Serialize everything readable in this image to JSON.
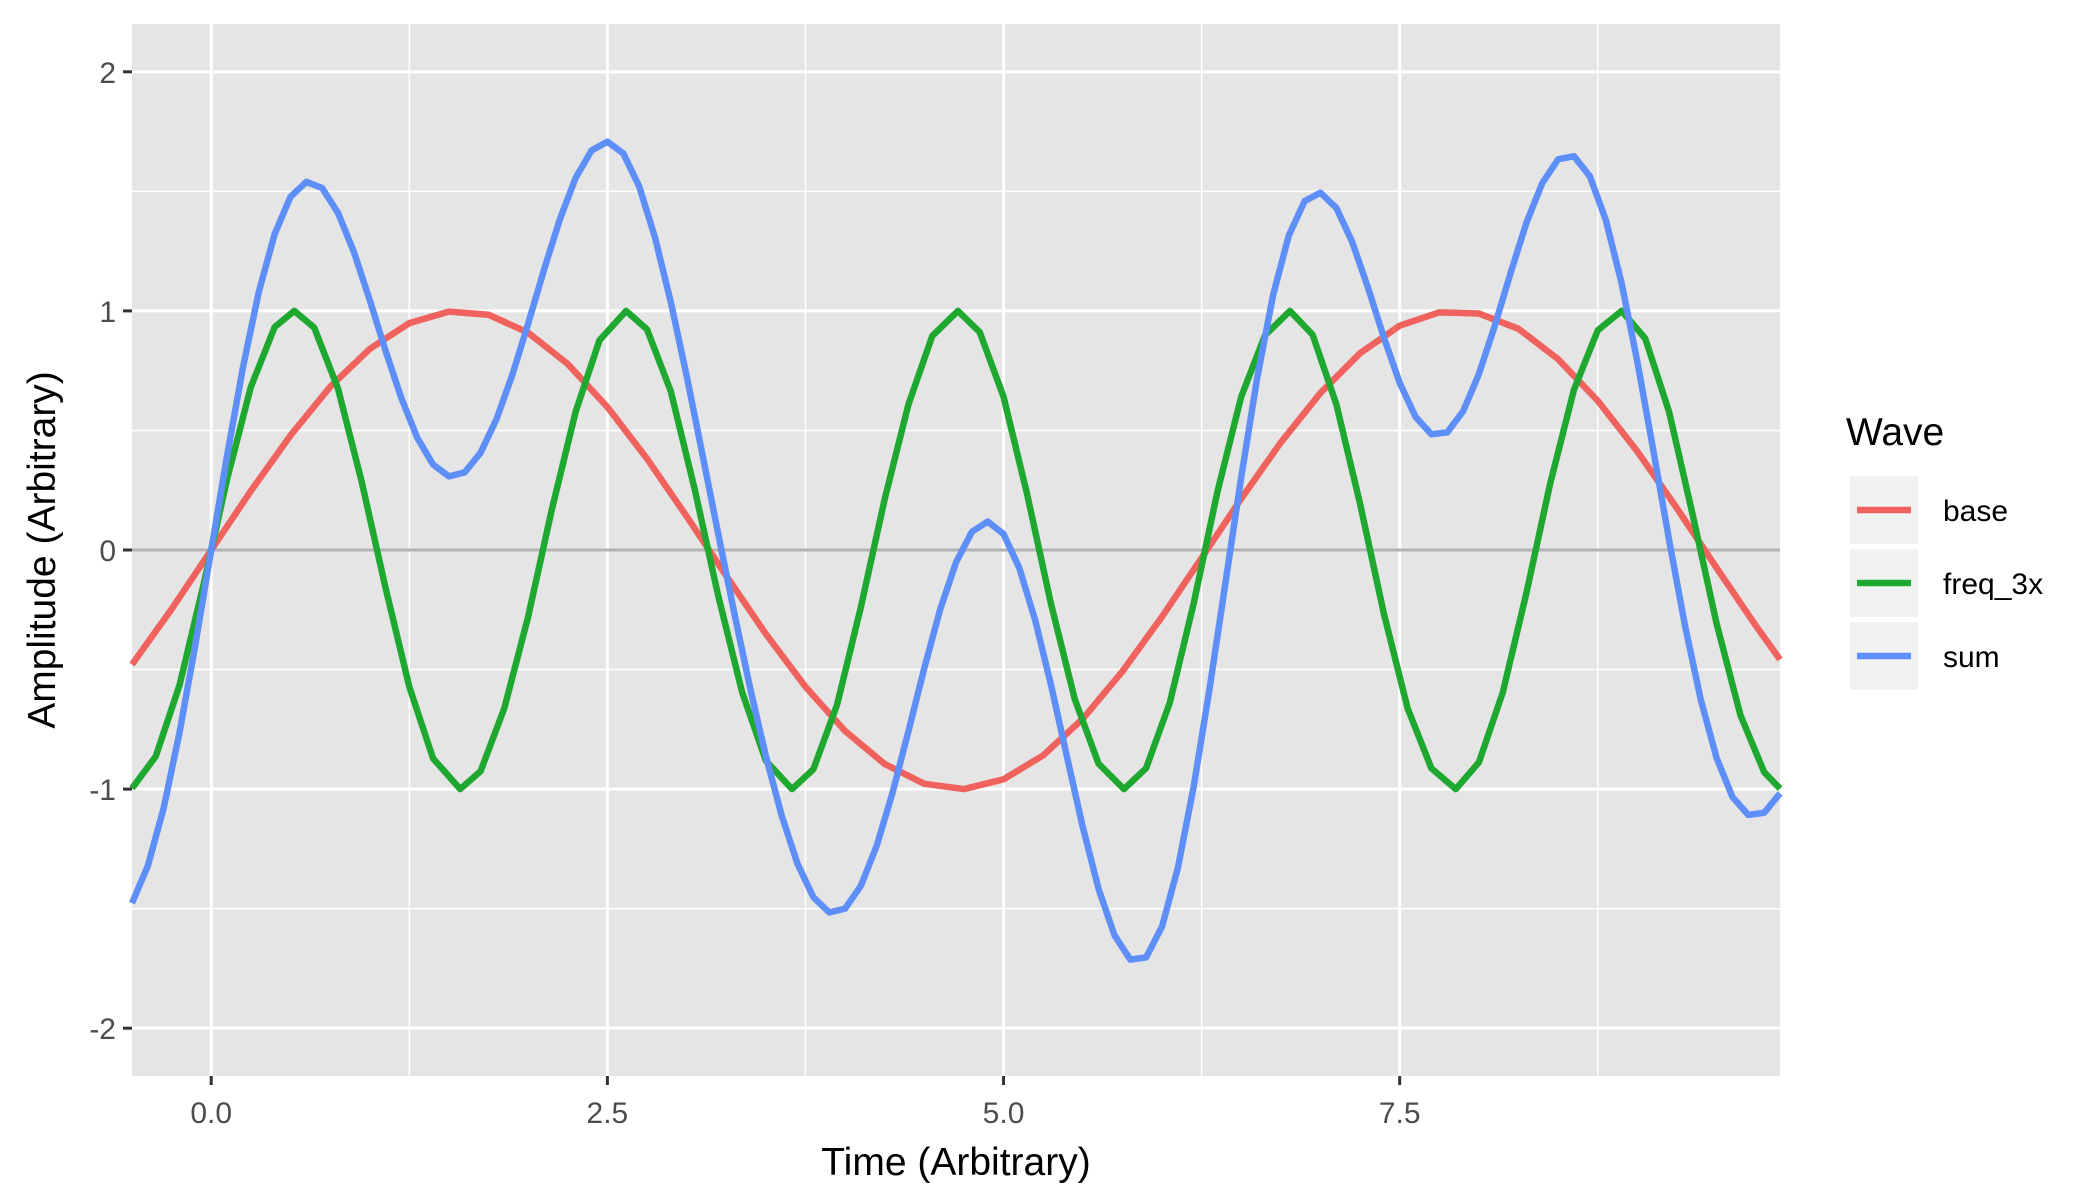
{
  "chart_data": {
    "type": "line",
    "title": "",
    "xlabel": "Time (Arbitrary)",
    "ylabel": "Amplitude (Arbitrary)",
    "xlim": [
      -0.5,
      9.9
    ],
    "ylim": [
      -2.2,
      2.2
    ],
    "x_ticks": [
      {
        "value": 0,
        "label": "0.0"
      },
      {
        "value": 2.5,
        "label": "2.5"
      },
      {
        "value": 5,
        "label": "5.0"
      },
      {
        "value": 7.5,
        "label": "7.5"
      }
    ],
    "y_ticks": [
      {
        "value": -2,
        "label": "-2"
      },
      {
        "value": -1,
        "label": "-1"
      },
      {
        "value": 0,
        "label": "0"
      },
      {
        "value": 1,
        "label": "1"
      },
      {
        "value": 2,
        "label": "2"
      }
    ],
    "grid": true,
    "background": "#e5e5e5",
    "zero_line_color": "#b3b3b3",
    "legend": {
      "title": "Wave",
      "position": "right"
    },
    "series": [
      {
        "name": "base",
        "color": "#f0625d",
        "x": [
          -0.5,
          -0.25,
          0,
          0.25,
          0.5,
          0.75,
          1,
          1.25,
          1.5,
          1.75,
          2,
          2.25,
          2.5,
          2.75,
          3,
          3.25,
          3.5,
          3.75,
          4,
          4.25,
          4.5,
          4.75,
          5,
          5.25,
          5.5,
          5.75,
          6,
          6.25,
          6.5,
          6.75,
          7,
          7.25,
          7.5,
          7.75,
          8,
          8.25,
          8.5,
          8.75,
          9,
          9.25,
          9.5,
          9.75,
          9.9
        ],
        "y": [
          -0.479,
          -0.247,
          0,
          0.247,
          0.479,
          0.682,
          0.841,
          0.949,
          0.997,
          0.984,
          0.909,
          0.778,
          0.598,
          0.382,
          0.141,
          -0.108,
          -0.351,
          -0.572,
          -0.757,
          -0.895,
          -0.978,
          -1.0,
          -0.959,
          -0.859,
          -0.706,
          -0.508,
          -0.279,
          -0.033,
          0.215,
          0.45,
          0.657,
          0.823,
          0.938,
          0.994,
          0.989,
          0.925,
          0.798,
          0.624,
          0.412,
          0.174,
          -0.075,
          -0.319,
          -0.458
        ]
      },
      {
        "name": "freq_3x",
        "color": "#1fa830",
        "x": [
          -0.5,
          -0.35,
          -0.2,
          -0.05,
          0.1,
          0.25,
          0.4,
          0.524,
          0.65,
          0.8,
          0.95,
          1.1,
          1.25,
          1.4,
          1.571,
          1.7,
          1.85,
          2.0,
          2.15,
          2.3,
          2.45,
          2.618,
          2.75,
          2.9,
          3.05,
          3.2,
          3.35,
          3.5,
          3.665,
          3.8,
          3.95,
          4.1,
          4.25,
          4.4,
          4.55,
          4.712,
          4.85,
          5.0,
          5.15,
          5.3,
          5.45,
          5.6,
          5.76,
          5.9,
          6.05,
          6.2,
          6.35,
          6.5,
          6.65,
          6.807,
          6.95,
          7.1,
          7.25,
          7.4,
          7.55,
          7.7,
          7.854,
          8.0,
          8.15,
          8.3,
          8.45,
          8.6,
          8.75,
          8.901,
          9.05,
          9.2,
          9.35,
          9.5,
          9.65,
          9.8,
          9.9
        ],
        "y": [
          -0.997,
          -0.863,
          -0.565,
          -0.149,
          0.296,
          0.682,
          0.932,
          1.0,
          0.93,
          0.675,
          0.284,
          -0.158,
          -0.572,
          -0.872,
          -1.0,
          -0.925,
          -0.661,
          -0.279,
          0.171,
          0.579,
          0.877,
          1.0,
          0.923,
          0.664,
          0.257,
          -0.193,
          -0.594,
          -0.881,
          -1.0,
          -0.917,
          -0.646,
          -0.238,
          0.213,
          0.609,
          0.895,
          1.0,
          0.911,
          0.641,
          0.23,
          -0.227,
          -0.625,
          -0.894,
          -1.0,
          -0.912,
          -0.637,
          -0.223,
          0.244,
          0.641,
          0.898,
          1.0,
          0.901,
          0.61,
          0.193,
          -0.266,
          -0.662,
          -0.913,
          -1.0,
          -0.888,
          -0.597,
          -0.179,
          0.279,
          0.671,
          0.919,
          1.0,
          0.884,
          0.578,
          0.144,
          -0.308,
          -0.69,
          -0.929,
          -0.998
        ]
      },
      {
        "name": "sum",
        "color": "#5e8ff9",
        "x": [
          -0.5,
          -0.4,
          -0.3,
          -0.2,
          -0.1,
          0,
          0.1,
          0.2,
          0.3,
          0.4,
          0.5,
          0.6,
          0.7,
          0.8,
          0.9,
          1.0,
          1.1,
          1.2,
          1.3,
          1.4,
          1.5,
          1.6,
          1.7,
          1.8,
          1.9,
          2.0,
          2.1,
          2.2,
          2.3,
          2.4,
          2.5,
          2.6,
          2.7,
          2.8,
          2.9,
          3.0,
          3.1,
          3.2,
          3.3,
          3.4,
          3.5,
          3.6,
          3.7,
          3.8,
          3.9,
          4.0,
          4.1,
          4.2,
          4.3,
          4.4,
          4.5,
          4.6,
          4.7,
          4.8,
          4.9,
          5.0,
          5.1,
          5.2,
          5.3,
          5.4,
          5.5,
          5.6,
          5.7,
          5.8,
          5.9,
          6.0,
          6.1,
          6.2,
          6.3,
          6.4,
          6.5,
          6.6,
          6.7,
          6.8,
          6.9,
          7.0,
          7.1,
          7.2,
          7.3,
          7.4,
          7.5,
          7.6,
          7.7,
          7.8,
          7.9,
          8.0,
          8.1,
          8.2,
          8.3,
          8.4,
          8.5,
          8.6,
          8.7,
          8.8,
          8.9,
          9.0,
          9.1,
          9.2,
          9.3,
          9.4,
          9.5,
          9.6,
          9.7,
          9.8,
          9.9
        ],
        "y": [
          -1.477,
          -1.321,
          -1.079,
          -0.763,
          -0.395,
          0,
          0.395,
          0.763,
          1.079,
          1.321,
          1.477,
          1.54,
          1.514,
          1.41,
          1.247,
          1.046,
          0.834,
          0.635,
          0.47,
          0.357,
          0.308,
          0.325,
          0.407,
          0.547,
          0.732,
          0.947,
          1.172,
          1.383,
          1.557,
          1.671,
          1.708,
          1.659,
          1.522,
          1.308,
          1.038,
          0.729,
          0.399,
          0.066,
          -0.261,
          -0.575,
          -0.862,
          -1.111,
          -1.313,
          -1.452,
          -1.516,
          -1.5,
          -1.404,
          -1.236,
          -1.014,
          -0.758,
          -0.494,
          -0.249,
          -0.052,
          0.076,
          0.119,
          0.067,
          -0.076,
          -0.294,
          -0.566,
          -0.864,
          -1.159,
          -1.418,
          -1.611,
          -1.713,
          -1.704,
          -1.575,
          -1.33,
          -0.989,
          -0.581,
          -0.139,
          0.305,
          0.717,
          1.063,
          1.315,
          1.459,
          1.494,
          1.431,
          1.289,
          1.097,
          0.889,
          0.699,
          0.557,
          0.484,
          0.492,
          0.58,
          0.736,
          0.938,
          1.159,
          1.369,
          1.535,
          1.634,
          1.647,
          1.563,
          1.382,
          1.117,
          0.787,
          0.419,
          0.042,
          -0.315,
          -0.626,
          -0.87,
          -1.033,
          -1.108,
          -1.099,
          -1.018
        ]
      }
    ]
  }
}
